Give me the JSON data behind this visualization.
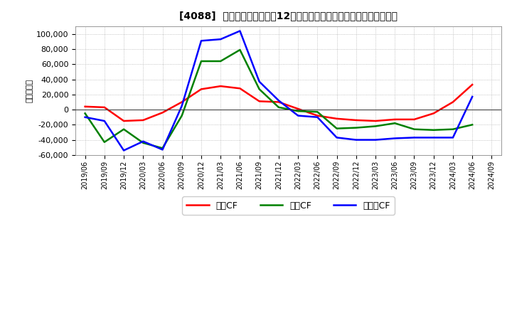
{
  "title": "[4088]  キャッシュフローの12か月移動合計の対前年同期増減額の推移",
  "ylabel": "（百万円）",
  "background_color": "#ffffff",
  "plot_bg_color": "#ffffff",
  "grid_color": "#aaaaaa",
  "ylim": [
    -60000,
    110000
  ],
  "yticks": [
    -60000,
    -40000,
    -20000,
    0,
    20000,
    40000,
    60000,
    80000,
    100000
  ],
  "dates": [
    "2019/06",
    "2019/09",
    "2019/12",
    "2020/03",
    "2020/06",
    "2020/09",
    "2020/12",
    "2021/03",
    "2021/06",
    "2021/09",
    "2021/12",
    "2022/03",
    "2022/06",
    "2022/09",
    "2022/12",
    "2023/03",
    "2023/06",
    "2023/09",
    "2023/12",
    "2024/03",
    "2024/06",
    "2024/09"
  ],
  "operating_cf": [
    4000,
    3000,
    -15000,
    -14000,
    -4000,
    10000,
    27000,
    31000,
    28000,
    11000,
    10000,
    1000,
    -8000,
    -12000,
    -14000,
    -15000,
    -13000,
    -13000,
    -5000,
    10000,
    33000,
    null
  ],
  "investing_cf": [
    -5000,
    -43000,
    -26000,
    -44000,
    -51000,
    -8000,
    64000,
    64000,
    79000,
    27000,
    3000,
    -2000,
    -3000,
    -25000,
    -24000,
    -22000,
    -18000,
    -26000,
    -27000,
    -26000,
    -20000,
    null
  ],
  "free_cf": [
    -10000,
    -15000,
    -54000,
    -42000,
    -53000,
    5000,
    91000,
    93000,
    104000,
    37000,
    12000,
    -8000,
    -10000,
    -37000,
    -40000,
    -40000,
    -38000,
    -37000,
    -37000,
    -37000,
    17000,
    null
  ],
  "operating_color": "#ff0000",
  "investing_color": "#008000",
  "free_color": "#0000ff",
  "line_width": 1.8,
  "legend_labels": [
    "営業CF",
    "投資CF",
    "フリーCF"
  ]
}
